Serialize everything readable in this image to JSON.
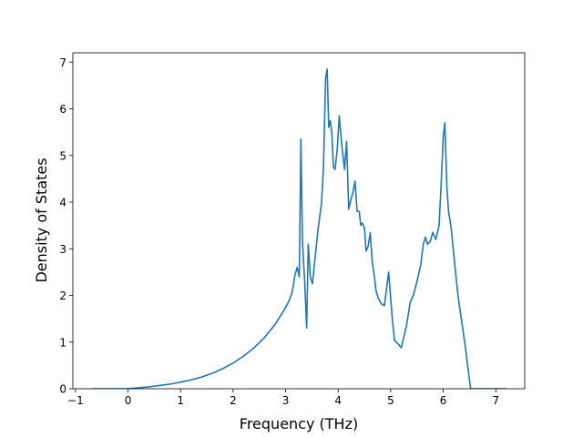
{
  "chart_data": {
    "type": "line",
    "title": "",
    "xlabel": "Frequency (THz)",
    "ylabel": "Density of States",
    "xlim": [
      -1.05,
      7.55
    ],
    "ylim": [
      0,
      7.2
    ],
    "grid": false,
    "xticks": [
      -1,
      0,
      1,
      2,
      3,
      4,
      5,
      6,
      7
    ],
    "yticks": [
      0,
      1,
      2,
      3,
      4,
      5,
      6,
      7
    ],
    "xtick_labels": [
      "−1",
      "0",
      "1",
      "2",
      "3",
      "4",
      "5",
      "6",
      "7"
    ],
    "ytick_labels": [
      "0",
      "1",
      "2",
      "3",
      "4",
      "5",
      "6",
      "7"
    ],
    "series": [
      {
        "color": "#1f77b4",
        "x": [
          -0.68,
          0.0,
          0.2,
          0.4,
          0.6,
          0.8,
          1.0,
          1.2,
          1.4,
          1.6,
          1.8,
          2.0,
          2.2,
          2.4,
          2.6,
          2.8,
          2.95,
          3.05,
          3.12,
          3.18,
          3.22,
          3.26,
          3.29,
          3.32,
          3.36,
          3.4,
          3.43,
          3.47,
          3.51,
          3.56,
          3.62,
          3.68,
          3.72,
          3.76,
          3.79,
          3.82,
          3.85,
          3.88,
          3.91,
          3.94,
          3.98,
          4.02,
          4.07,
          4.12,
          4.16,
          4.2,
          4.24,
          4.28,
          4.32,
          4.36,
          4.4,
          4.43,
          4.46,
          4.5,
          4.53,
          4.57,
          4.61,
          4.65,
          4.69,
          4.72,
          4.76,
          4.82,
          4.88,
          4.96,
          5.03,
          5.07,
          5.1,
          5.15,
          5.2,
          5.3,
          5.37,
          5.43,
          5.5,
          5.57,
          5.62,
          5.66,
          5.7,
          5.75,
          5.8,
          5.86,
          5.92,
          5.96,
          6.0,
          6.03,
          6.07,
          6.1,
          6.15,
          6.22,
          6.28,
          6.35,
          6.42,
          6.48,
          6.52,
          6.56,
          6.6,
          7.2
        ],
        "y": [
          0.0,
          0.0,
          0.02,
          0.04,
          0.07,
          0.1,
          0.14,
          0.19,
          0.25,
          0.33,
          0.43,
          0.55,
          0.7,
          0.88,
          1.1,
          1.38,
          1.65,
          1.85,
          2.05,
          2.45,
          2.6,
          2.4,
          5.35,
          3.15,
          2.35,
          1.3,
          3.1,
          2.4,
          2.25,
          2.8,
          3.45,
          3.95,
          4.75,
          6.65,
          6.85,
          5.6,
          5.75,
          5.45,
          4.75,
          4.7,
          5.1,
          5.85,
          5.2,
          4.7,
          5.3,
          3.85,
          4.05,
          4.2,
          4.45,
          3.8,
          3.8,
          3.5,
          3.55,
          3.45,
          2.95,
          3.05,
          3.35,
          2.7,
          2.4,
          2.1,
          1.95,
          1.82,
          1.78,
          2.5,
          1.5,
          1.05,
          1.0,
          0.95,
          0.88,
          1.35,
          1.85,
          2.0,
          2.3,
          2.65,
          3.1,
          3.25,
          3.1,
          3.15,
          3.35,
          3.2,
          3.5,
          4.4,
          5.4,
          5.7,
          4.3,
          3.8,
          3.45,
          2.65,
          2.0,
          1.45,
          0.9,
          0.35,
          0.0,
          0.0,
          0.0,
          0.0
        ]
      }
    ]
  }
}
